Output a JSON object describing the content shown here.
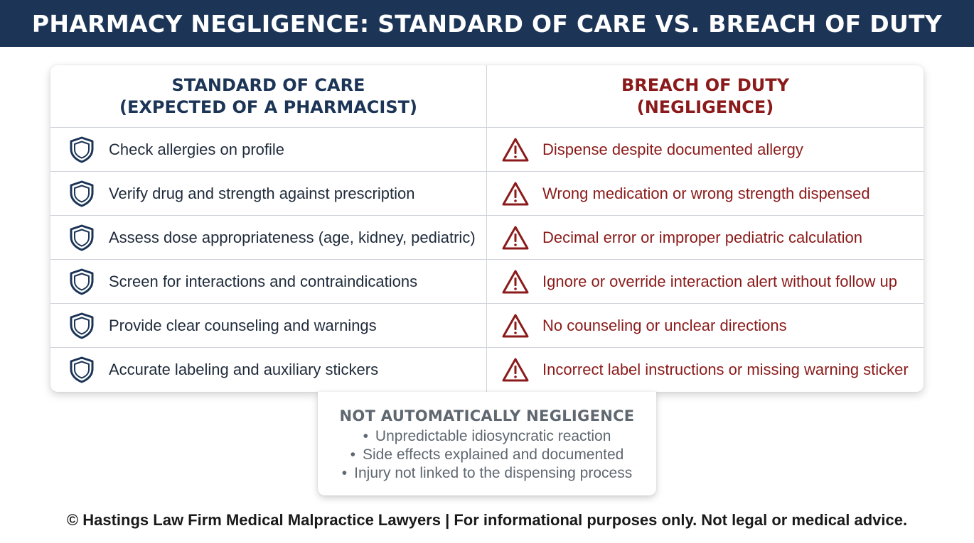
{
  "header": {
    "title": "PHARMACY NEGLIGENCE: STANDARD OF CARE VS. BREACH OF DUTY"
  },
  "table": {
    "left_header": [
      "STANDARD OF CARE",
      "(EXPECTED OF A PHARMACIST)"
    ],
    "right_header": [
      "BREACH OF DUTY",
      "(NEGLIGENCE)"
    ],
    "rows": [
      {
        "standard": "Check allergies on profile",
        "breach": "Dispense despite documented allergy"
      },
      {
        "standard": "Verify drug and strength against prescription",
        "breach": "Wrong medication or wrong strength dispensed"
      },
      {
        "standard": "Assess dose appropriateness (age, kidney, pediatric)",
        "breach": "Decimal error or improper pediatric calculation"
      },
      {
        "standard": "Screen for interactions and contraindications",
        "breach": "Ignore or override interaction alert without follow up"
      },
      {
        "standard": "Provide clear counseling and warnings",
        "breach": "No counseling or unclear directions"
      },
      {
        "standard": "Accurate labeling and auxiliary stickers",
        "breach": "Incorrect label instructions or missing warning sticker"
      }
    ],
    "icons": {
      "standard": "shield-icon",
      "breach": "warning-icon"
    }
  },
  "note": {
    "title": "NOT AUTOMATICALLY NEGLIGENCE",
    "items": [
      "Unpredictable idiosyncratic reaction",
      "Side effects explained and documented",
      "Injury not linked to the dispensing process"
    ]
  },
  "footer": {
    "text": "© Hastings Law Firm Medical Malpractice Lawyers | For informational purposes only. Not legal or medical advice."
  },
  "colors": {
    "header_bg": "#1c3557",
    "navy": "#1c3557",
    "maroon": "#8b1a1a",
    "gray": "#5f6770"
  }
}
